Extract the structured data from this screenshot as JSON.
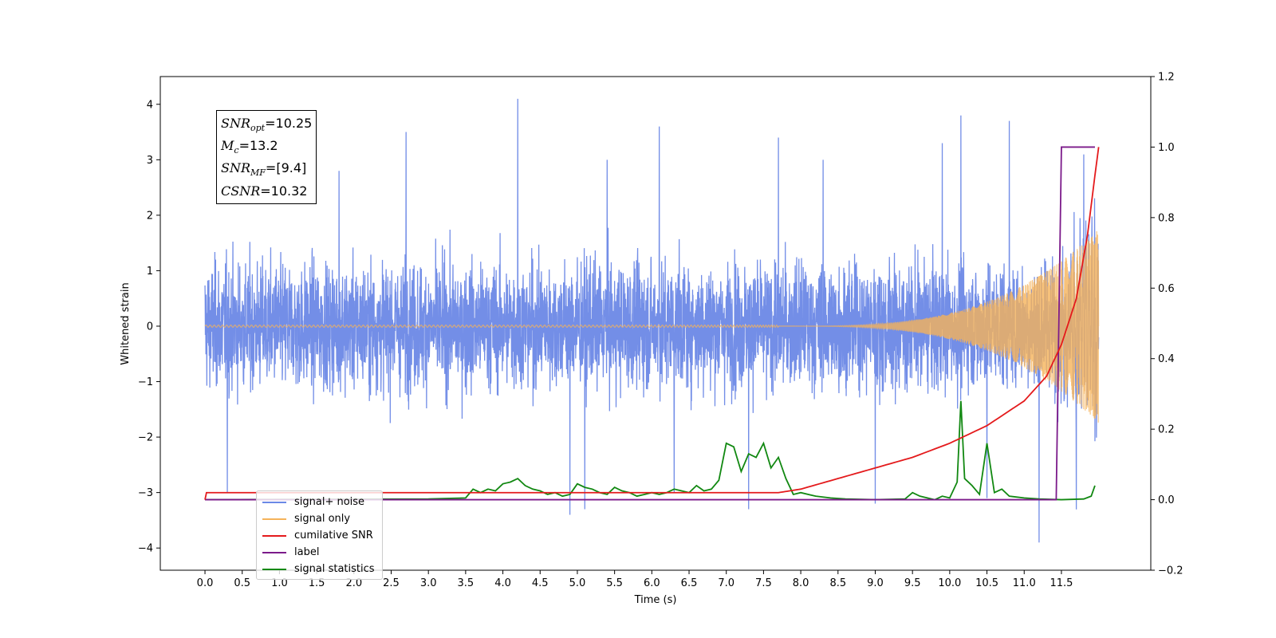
{
  "chart_data": {
    "type": "line",
    "xlabel": "Time (s)",
    "ylabel": "Whitened strain",
    "xlim": [
      -0.6,
      12.7
    ],
    "ylim": [
      -4.4,
      4.5
    ],
    "ylim_right": [
      -0.2,
      1.2
    ],
    "x_ticks": [
      "0.0",
      "0.5",
      "1.0",
      "1.5",
      "2.0",
      "2.5",
      "3.0",
      "3.5",
      "4.0",
      "4.5",
      "5.0",
      "5.5",
      "6.0",
      "6.5",
      "7.0",
      "7.5",
      "8.0",
      "8.5",
      "9.0",
      "9.5",
      "10.0",
      "10.5",
      "11.0",
      "11.5"
    ],
    "y_ticks_left": [
      "−4",
      "−3",
      "−2",
      "−1",
      "0",
      "1",
      "2",
      "3",
      "4"
    ],
    "y_ticks_right": [
      "−0.2",
      "0.0",
      "0.2",
      "0.4",
      "0.6",
      "0.8",
      "1.0",
      "1.2"
    ],
    "grid": false,
    "legend_position": "lower-left",
    "annotation": {
      "snr_opt": {
        "sym": "SNR",
        "sub": "opt",
        "val": "=10.25"
      },
      "mc": {
        "sym": "M",
        "sub": "c",
        "val": "=13.2"
      },
      "snr_mf": {
        "sym": "SNR",
        "sub": "MF",
        "val": "=[9.4]"
      },
      "csnr": {
        "sym": "CSNR",
        "sub": "",
        "val": "=10.32"
      }
    },
    "series": [
      {
        "name": "signal+ noise",
        "color": "#6b88e6",
        "axis": "left",
        "description_values": "white noise envelope roughly ±2.0 with peaks near ±3.5; max 4.1 at t≈4.2 s; min −3.9 at t≈11.2 s",
        "spikes": [
          [
            0.3,
            -3.0
          ],
          [
            1.8,
            2.8
          ],
          [
            2.7,
            3.5
          ],
          [
            4.2,
            4.1
          ],
          [
            4.9,
            -3.4
          ],
          [
            5.1,
            -3.3
          ],
          [
            5.4,
            3.0
          ],
          [
            6.1,
            3.6
          ],
          [
            6.3,
            -3.0
          ],
          [
            7.3,
            -3.3
          ],
          [
            7.7,
            3.4
          ],
          [
            8.3,
            3.0
          ],
          [
            9.0,
            -3.2
          ],
          [
            9.9,
            3.3
          ],
          [
            10.15,
            3.8
          ],
          [
            10.5,
            -3.1
          ],
          [
            10.8,
            3.7
          ],
          [
            11.2,
            -3.9
          ],
          [
            11.7,
            -3.0
          ],
          [
            11.8,
            3.0
          ],
          [
            11.95,
            -3.3
          ]
        ]
      },
      {
        "name": "signal only",
        "color": "#f5b35a",
        "axis": "left",
        "chirp_start": 7.7,
        "chirp_end": 12.0,
        "amplitude_end": 1.75
      },
      {
        "name": "cumilative SNR",
        "color": "#e41a1c",
        "axis": "right",
        "x": [
          0.0,
          0.02,
          7.7,
          8.0,
          8.5,
          9.0,
          9.5,
          10.0,
          10.5,
          11.0,
          11.3,
          11.5,
          11.7,
          11.85,
          11.95,
          12.0
        ],
        "y": [
          0.0,
          0.02,
          0.02,
          0.03,
          0.06,
          0.09,
          0.12,
          0.16,
          0.21,
          0.28,
          0.35,
          0.44,
          0.57,
          0.75,
          0.92,
          1.0
        ]
      },
      {
        "name": "label",
        "color": "#7b1a8a",
        "axis": "right",
        "x": [
          0.0,
          11.43,
          11.5,
          11.95
        ],
        "y": [
          0.0,
          0.0,
          1.0,
          1.0
        ]
      },
      {
        "name": "signal statistics",
        "color": "#118811",
        "axis": "right",
        "x": [
          0.0,
          3.0,
          3.5,
          3.6,
          3.7,
          3.8,
          3.9,
          4.0,
          4.1,
          4.2,
          4.3,
          4.4,
          4.5,
          4.6,
          4.7,
          4.8,
          4.9,
          5.0,
          5.1,
          5.2,
          5.3,
          5.4,
          5.5,
          5.6,
          5.7,
          5.8,
          5.9,
          6.0,
          6.1,
          6.2,
          6.3,
          6.4,
          6.5,
          6.6,
          6.7,
          6.8,
          6.9,
          7.0,
          7.1,
          7.2,
          7.3,
          7.4,
          7.5,
          7.6,
          7.7,
          7.8,
          7.9,
          8.0,
          8.2,
          8.4,
          8.6,
          9.0,
          9.4,
          9.5,
          9.6,
          9.7,
          9.8,
          9.9,
          10.0,
          10.1,
          10.15,
          10.2,
          10.3,
          10.4,
          10.5,
          10.6,
          10.7,
          10.8,
          11.0,
          11.2,
          11.5,
          11.8,
          11.9,
          11.95
        ],
        "y": [
          0.0,
          0.002,
          0.005,
          0.03,
          0.02,
          0.03,
          0.025,
          0.045,
          0.05,
          0.06,
          0.04,
          0.03,
          0.025,
          0.015,
          0.02,
          0.01,
          0.015,
          0.045,
          0.035,
          0.03,
          0.02,
          0.015,
          0.035,
          0.025,
          0.02,
          0.01,
          0.015,
          0.02,
          0.015,
          0.02,
          0.03,
          0.025,
          0.02,
          0.04,
          0.025,
          0.03,
          0.055,
          0.16,
          0.15,
          0.08,
          0.13,
          0.12,
          0.16,
          0.09,
          0.12,
          0.06,
          0.015,
          0.02,
          0.01,
          0.005,
          0.002,
          0.0,
          0.002,
          0.02,
          0.01,
          0.005,
          0.0,
          0.01,
          0.005,
          0.05,
          0.28,
          0.06,
          0.04,
          0.015,
          0.16,
          0.02,
          0.03,
          0.01,
          0.005,
          0.002,
          0.0,
          0.002,
          0.01,
          0.04
        ]
      }
    ]
  }
}
